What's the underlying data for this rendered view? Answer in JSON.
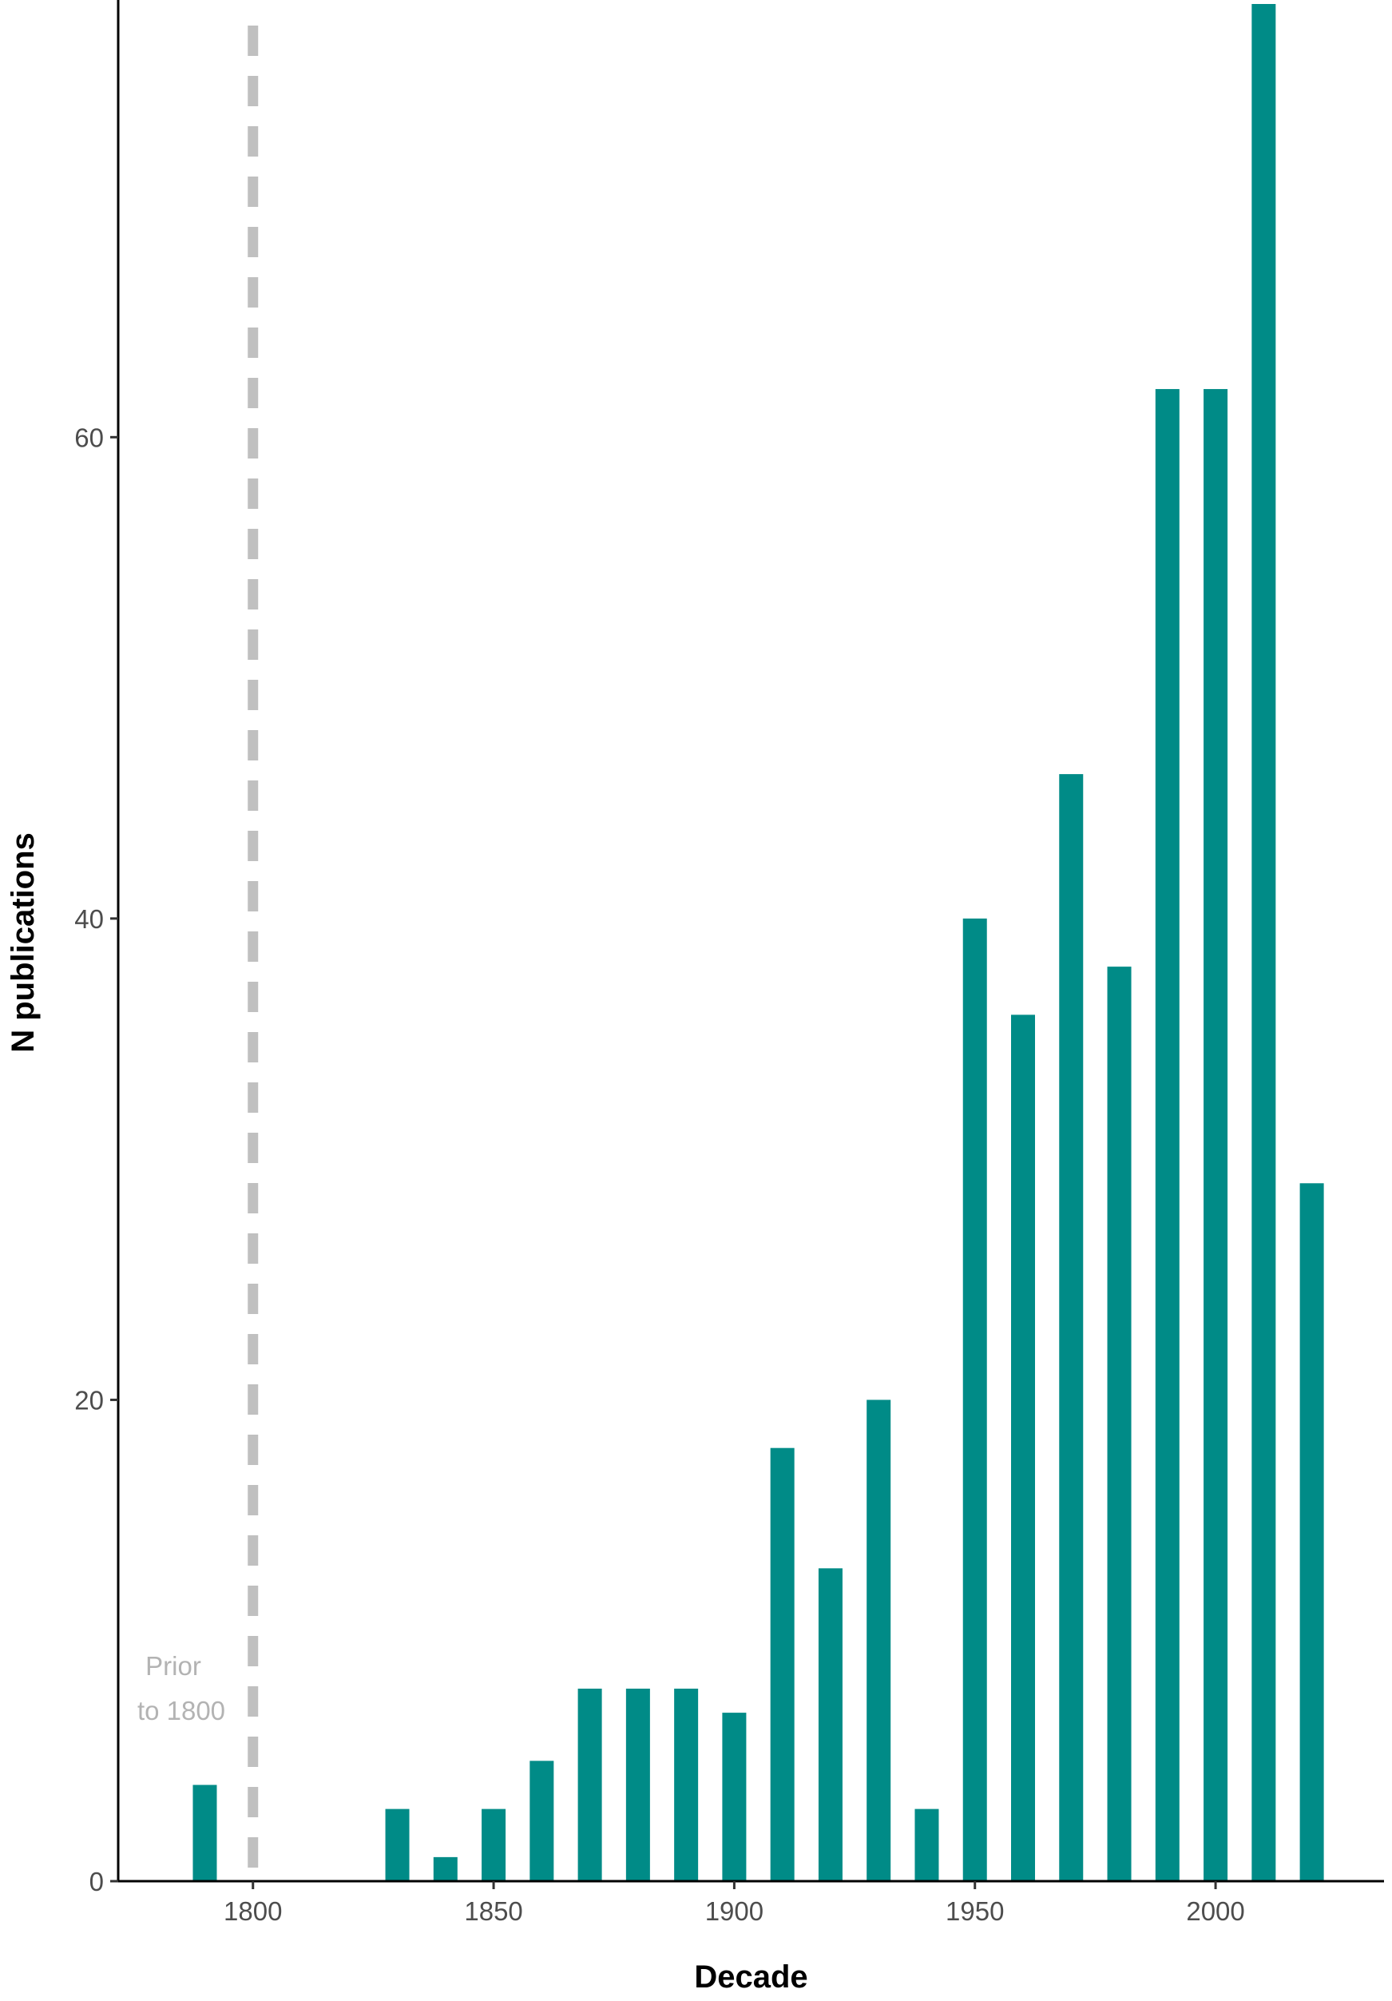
{
  "chart_data": {
    "type": "bar",
    "xlabel": "Decade",
    "ylabel": "N publications",
    "xlim": [
      1772,
      2035
    ],
    "ylim": [
      0,
      78
    ],
    "x_ticks": [
      1800,
      1850,
      1900,
      1950,
      2000
    ],
    "y_ticks": [
      0,
      20,
      40,
      60
    ],
    "x": [
      1790,
      1830,
      1840,
      1850,
      1860,
      1870,
      1880,
      1890,
      1900,
      1910,
      1920,
      1930,
      1940,
      1950,
      1960,
      1970,
      1980,
      1990,
      2000,
      2010,
      2020
    ],
    "values": [
      4,
      3,
      1,
      3,
      5,
      8,
      8,
      8,
      7,
      18,
      13,
      20,
      3,
      40,
      36,
      46,
      38,
      62,
      62,
      78,
      29
    ],
    "bar_color": "#008b87",
    "grid": false,
    "reference_line": {
      "x": 1800,
      "style": "dashed",
      "color": "#c0c0c0",
      "label_lines": [
        "Prior",
        "to 1800"
      ],
      "label_color": "#b3b3b3"
    }
  }
}
